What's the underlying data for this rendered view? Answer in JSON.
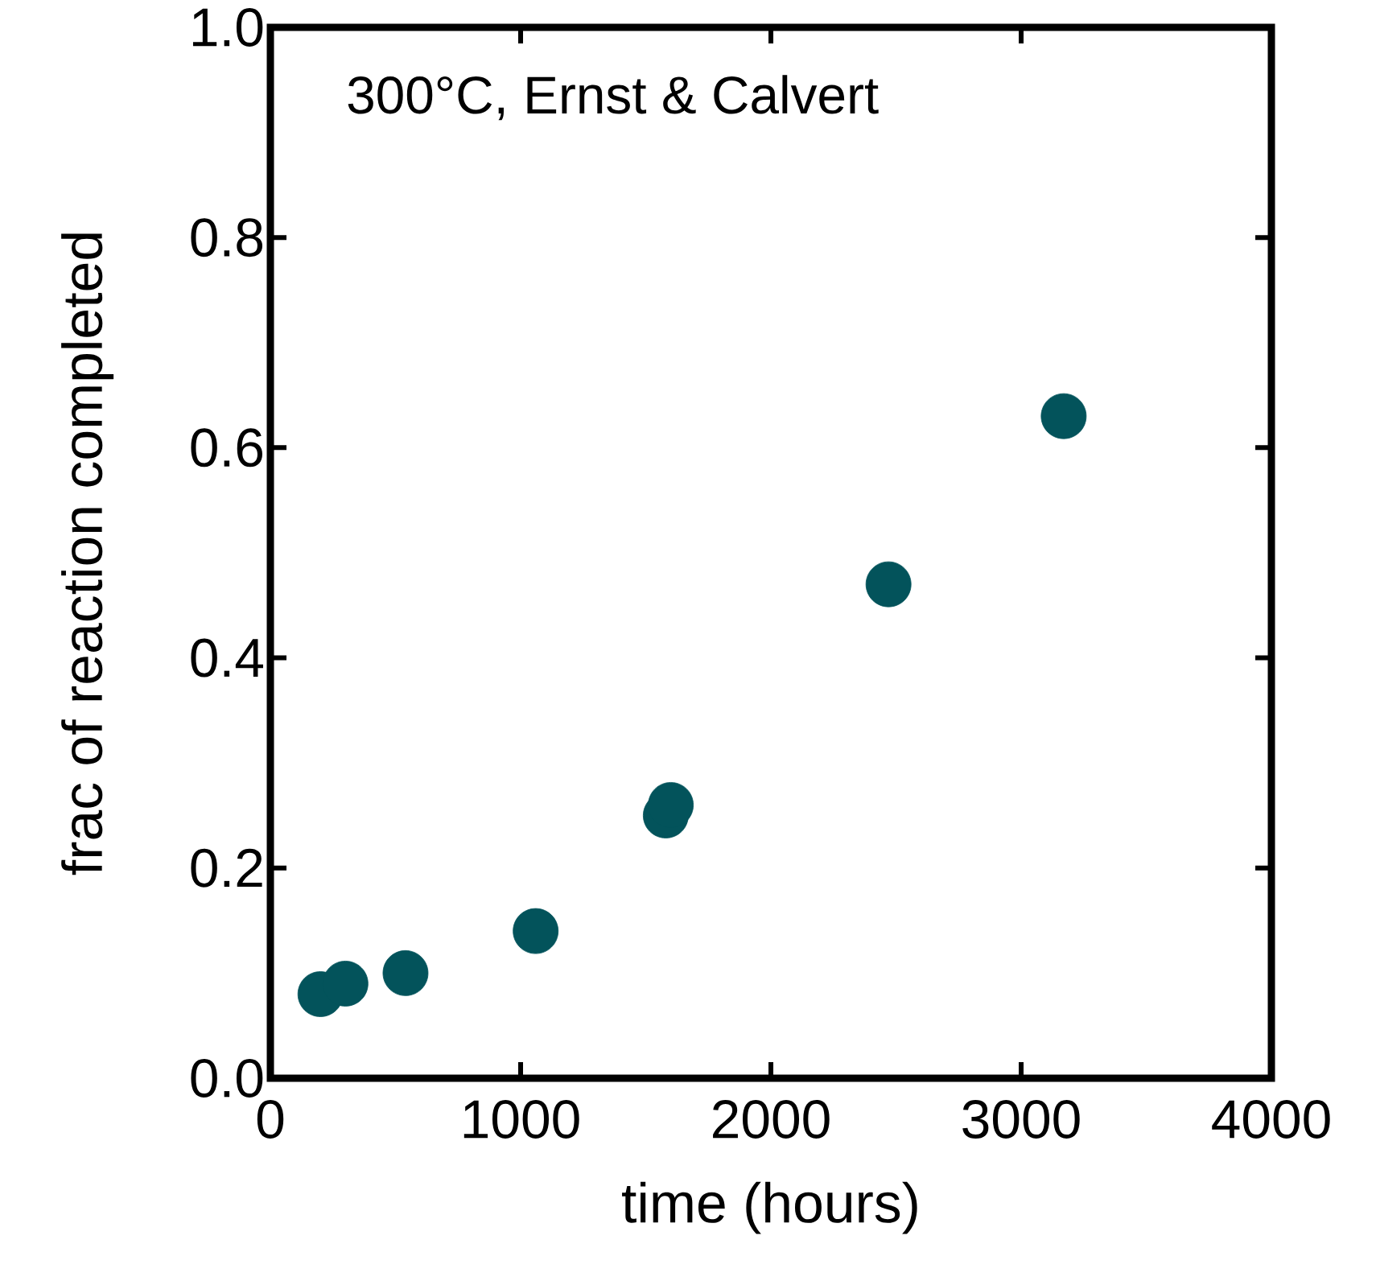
{
  "chart_data": {
    "type": "scatter",
    "xlabel": "time (hours)",
    "ylabel": "frac of reaction completed",
    "annotations": [
      "300°C, Ernst & Calvert"
    ],
    "x": [
      200,
      300,
      540,
      1060,
      1580,
      1600,
      2470,
      3170
    ],
    "series": [
      {
        "color": "#03535b",
        "values": [
          0.08,
          0.09,
          0.1,
          0.14,
          0.25,
          0.26,
          0.47,
          0.63
        ]
      }
    ],
    "xlim": [
      0,
      4000
    ],
    "ylim": [
      0,
      1.0
    ],
    "xticks": [
      0,
      1000,
      2000,
      3000,
      4000
    ],
    "yticks": [
      {
        "value": 0,
        "label": "0.0"
      },
      {
        "value": 0.2,
        "label": "0.2"
      },
      {
        "value": 0.4,
        "label": "0.4"
      },
      {
        "value": 0.6,
        "label": "0.6"
      },
      {
        "value": 0.8,
        "label": "0.8"
      },
      {
        "value": 1.0,
        "label": "1.0"
      }
    ],
    "marker": "circle",
    "grid": false
  }
}
